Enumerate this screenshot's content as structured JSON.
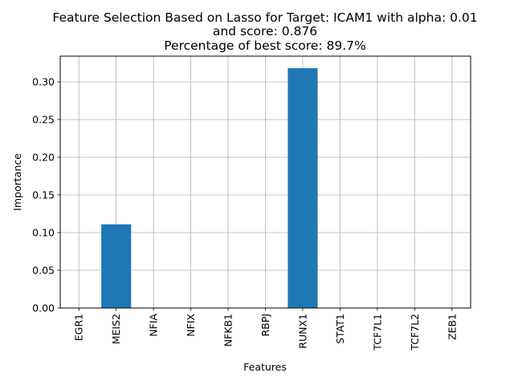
{
  "chart_data": {
    "type": "bar",
    "title_lines": [
      "Feature Selection Based on Lasso for Target: ICAM1 with alpha: 0.01",
      "and score: 0.876",
      "Percentage of best score: 89.7%"
    ],
    "xlabel": "Features",
    "ylabel": "Importance",
    "categories": [
      "EGR1",
      "MEIS2",
      "NFIA",
      "NFIX",
      "NFKB1",
      "RBPJ",
      "RUNX1",
      "STAT1",
      "TCF7L1",
      "TCF7L2",
      "ZEB1"
    ],
    "values": [
      0,
      0.111,
      0,
      0,
      0,
      0,
      0.318,
      0,
      0,
      0,
      0
    ],
    "ylim": [
      0,
      0.334
    ],
    "yticks": [
      0.0,
      0.05,
      0.1,
      0.15,
      0.2,
      0.25,
      0.3
    ],
    "ytick_labels": [
      "0.00",
      "0.05",
      "0.10",
      "0.15",
      "0.20",
      "0.25",
      "0.30"
    ],
    "grid": true,
    "bar_color": "#1f77b4"
  }
}
